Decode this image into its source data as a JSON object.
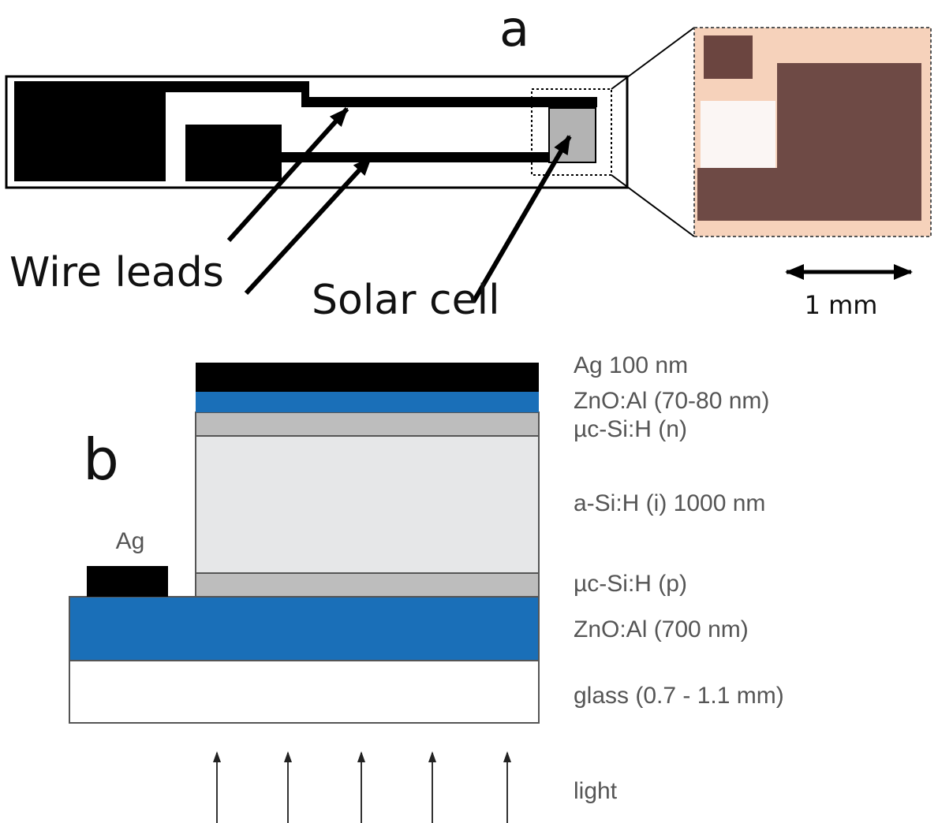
{
  "panel_a": {
    "label": "a",
    "callouts": [
      "Wire leads",
      "Solar cell"
    ],
    "scale_bar": "1 mm"
  },
  "panel_b": {
    "label": "b",
    "contact_label": "Ag",
    "layers": [
      "Ag 100 nm",
      "ZnO:Al (70-80 nm)",
      "µc-Si:H (n)",
      "a-Si:H (i) 1000 nm",
      "µc-Si:H (p)",
      "ZnO:Al (700 nm)",
      "glass (0.7 - 1.1 mm)"
    ],
    "light": "light"
  }
}
